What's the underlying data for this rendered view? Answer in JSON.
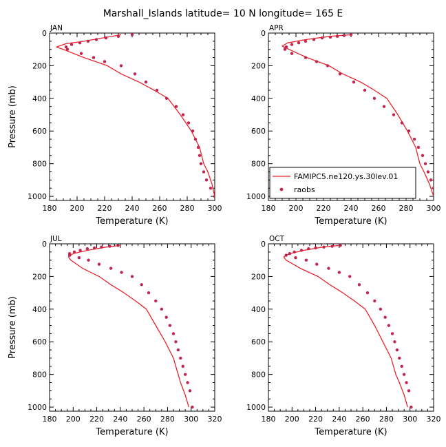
{
  "title": "Marshall_Islands   latitude= 10 N longitude= 165 E",
  "colors": {
    "model": "#e8232b",
    "obs": "#c2254e",
    "axis": "#000000"
  },
  "chart_data": [
    {
      "type": "line",
      "title": "JAN",
      "xlabel": "Temperature (K)",
      "ylabel": "Pressure (mb)",
      "xlim": [
        180,
        300
      ],
      "xticks": [
        "180",
        "200",
        "220",
        "240",
        "260",
        "280",
        "300"
      ],
      "ylim": [
        1025,
        0
      ],
      "yticks": [
        "0",
        "200",
        "400",
        "600",
        "800",
        "1000"
      ],
      "legend": null,
      "series": [
        {
          "name": "FAMIPC5.ne120.ys.30lev.01",
          "kind": "line",
          "x": [
            232,
            222,
            205,
            192,
            185,
            190,
            205,
            222,
            232,
            245,
            256,
            266,
            275,
            283,
            289,
            292,
            295,
            298,
            300
          ],
          "y": [
            10,
            25,
            50,
            65,
            85,
            100,
            150,
            200,
            250,
            300,
            350,
            400,
            500,
            600,
            700,
            800,
            850,
            925,
            1000
          ]
        },
        {
          "name": "raobs",
          "kind": "scatter",
          "x": [
            240,
            230,
            221,
            214,
            208,
            202,
            196,
            192,
            193,
            203,
            212,
            220,
            232,
            242,
            250,
            258,
            265,
            272,
            277,
            281,
            284,
            286,
            288,
            289,
            290,
            292,
            294,
            297,
            300
          ],
          "y": [
            10,
            20,
            30,
            40,
            50,
            60,
            70,
            85,
            100,
            125,
            150,
            175,
            200,
            250,
            300,
            350,
            400,
            450,
            500,
            550,
            600,
            650,
            700,
            750,
            800,
            850,
            900,
            950,
            1000
          ]
        }
      ]
    },
    {
      "type": "line",
      "title": "APR",
      "xlabel": "Temperature (K)",
      "ylabel": "",
      "xlim": [
        180,
        300
      ],
      "xticks": [
        "180",
        "200",
        "220",
        "240",
        "260",
        "280",
        "300"
      ],
      "ylim": [
        1025,
        0
      ],
      "yticks": [
        "0",
        "200",
        "400",
        "600",
        "800",
        "1000"
      ],
      "legend": "bottom-left",
      "series": [
        {
          "name": "FAMIPC5.ne120.ys.30lev.01",
          "kind": "line",
          "x": [
            240,
            225,
            207,
            194,
            190,
            195,
            208,
            224,
            234,
            247,
            257,
            266,
            274,
            281,
            287,
            290,
            293,
            297,
            300
          ],
          "y": [
            10,
            20,
            40,
            60,
            80,
            100,
            150,
            200,
            250,
            300,
            350,
            400,
            500,
            600,
            700,
            800,
            850,
            925,
            1000
          ]
        },
        {
          "name": "raobs",
          "kind": "scatter",
          "x": [
            240,
            235,
            230,
            225,
            219,
            213,
            207,
            202,
            197,
            193,
            192,
            197,
            207,
            215,
            223,
            232,
            242,
            250,
            257,
            264,
            271,
            277,
            282,
            286,
            289,
            292,
            294,
            296,
            298,
            300
          ],
          "y": [
            10,
            15,
            20,
            25,
            30,
            40,
            50,
            60,
            70,
            85,
            100,
            125,
            150,
            175,
            200,
            250,
            300,
            350,
            400,
            450,
            500,
            550,
            600,
            650,
            700,
            750,
            800,
            850,
            900,
            950
          ]
        }
      ]
    },
    {
      "type": "line",
      "title": "JUL",
      "xlabel": "Temperature (K)",
      "ylabel": "Pressure (mb)",
      "xlim": [
        180,
        320
      ],
      "xticks": [
        "180",
        "200",
        "220",
        "240",
        "260",
        "280",
        "300",
        "320"
      ],
      "ylim": [
        1025,
        0
      ],
      "yticks": [
        "0",
        "200",
        "400",
        "600",
        "800",
        "1000"
      ],
      "legend": null,
      "series": [
        {
          "name": "FAMIPC5.ne120.ys.30lev.01",
          "kind": "line",
          "x": [
            240,
            228,
            212,
            200,
            196,
            198,
            208,
            222,
            232,
            243,
            253,
            262,
            270,
            278,
            285,
            289,
            291,
            295,
            298
          ],
          "y": [
            10,
            20,
            40,
            60,
            80,
            100,
            150,
            200,
            250,
            300,
            350,
            400,
            500,
            600,
            700,
            800,
            850,
            925,
            1000
          ]
        },
        {
          "name": "raobs",
          "kind": "scatter",
          "x": [
            238,
            231,
            224,
            218,
            212,
            206,
            201,
            197,
            197,
            205,
            213,
            222,
            232,
            241,
            250,
            258,
            264,
            270,
            275,
            279,
            282,
            285,
            287,
            289,
            291,
            293,
            295,
            297,
            299,
            301
          ],
          "y": [
            10,
            15,
            20,
            25,
            30,
            40,
            50,
            60,
            70,
            85,
            100,
            125,
            150,
            175,
            200,
            250,
            300,
            350,
            400,
            450,
            500,
            550,
            600,
            650,
            700,
            750,
            800,
            850,
            900,
            1000
          ]
        }
      ]
    },
    {
      "type": "line",
      "title": "OCT",
      "xlabel": "Temperature (K)",
      "ylabel": "",
      "xlim": [
        180,
        320
      ],
      "xticks": [
        "180",
        "200",
        "220",
        "240",
        "260",
        "280",
        "300",
        "320"
      ],
      "ylim": [
        1025,
        0
      ],
      "yticks": [
        "0",
        "200",
        "400",
        "600",
        "800",
        "1000"
      ],
      "legend": null,
      "series": [
        {
          "name": "FAMIPC5.ne120.ys.30lev.01",
          "kind": "line",
          "x": [
            240,
            226,
            210,
            198,
            193,
            195,
            207,
            222,
            232,
            243,
            253,
            262,
            270,
            277,
            284,
            288,
            291,
            295,
            298
          ],
          "y": [
            10,
            20,
            40,
            60,
            80,
            100,
            150,
            200,
            250,
            300,
            350,
            400,
            500,
            600,
            700,
            800,
            850,
            925,
            1000
          ]
        },
        {
          "name": "raobs",
          "kind": "scatter",
          "x": [
            241,
            234,
            227,
            220,
            214,
            208,
            202,
            198,
            195,
            203,
            212,
            221,
            231,
            240,
            249,
            257,
            264,
            270,
            275,
            279,
            282,
            285,
            287,
            289,
            291,
            293,
            295,
            297,
            299,
            301
          ],
          "y": [
            10,
            15,
            20,
            25,
            30,
            40,
            50,
            60,
            70,
            85,
            100,
            125,
            150,
            175,
            200,
            250,
            300,
            350,
            400,
            450,
            500,
            550,
            600,
            650,
            700,
            750,
            800,
            850,
            900,
            1000
          ]
        }
      ]
    }
  ]
}
